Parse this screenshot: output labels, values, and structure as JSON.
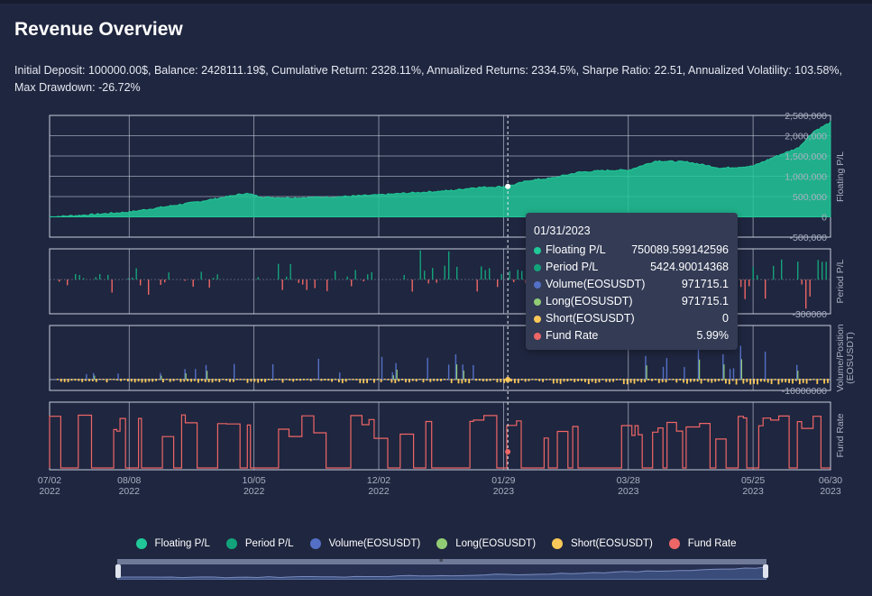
{
  "title": "Revenue Overview",
  "stats": "Initial Deposit: 100000.00$, Balance: 2428111.19$, Cumulative Return: 2328.11%, Annualized Returns: 2334.5%, Sharpe Ratio: 22.51, Annualized Volatility: 103.58%, Max Drawdown: -26.72%",
  "colors": {
    "floating": "#21c898",
    "period": "#13a37b",
    "volume": "#5470c6",
    "long": "#91cc75",
    "short": "#fac858",
    "fund_rate": "#ee6666"
  },
  "tooltip": {
    "date": "01/31/2023",
    "rows": [
      {
        "label": "Floating P/L",
        "value": "750089.599142596",
        "color": "#21c898"
      },
      {
        "label": "Period P/L",
        "value": "5424.90014368",
        "color": "#13a37b"
      },
      {
        "label": "Volume(EOSUSDT)",
        "value": "971715.1",
        "color": "#5470c6"
      },
      {
        "label": "Long(EOSUSDT)",
        "value": "971715.1",
        "color": "#91cc75"
      },
      {
        "label": "Short(EOSUSDT)",
        "value": "0",
        "color": "#fac858"
      },
      {
        "label": "Fund Rate",
        "value": "5.99%",
        "color": "#ee6666"
      }
    ]
  },
  "legend": [
    {
      "label": "Floating P/L",
      "color": "#21c898"
    },
    {
      "label": "Period P/L",
      "color": "#13a37b"
    },
    {
      "label": "Volume(EOSUSDT)",
      "color": "#5470c6"
    },
    {
      "label": "Long(EOSUSDT)",
      "color": "#91cc75"
    },
    {
      "label": "Short(EOSUSDT)",
      "color": "#fac858"
    },
    {
      "label": "Fund Rate",
      "color": "#ee6666"
    }
  ],
  "chart_data": {
    "type": "line",
    "x_ticks": [
      {
        "month": "07/02",
        "year": "2022",
        "date": "2022-07-02"
      },
      {
        "month": "08/08",
        "year": "2022",
        "date": "2022-08-08"
      },
      {
        "month": "10/05",
        "year": "2022",
        "date": "2022-10-05"
      },
      {
        "month": "12/02",
        "year": "2022",
        "date": "2022-12-02"
      },
      {
        "month": "01/29",
        "year": "2023",
        "date": "2023-01-29"
      },
      {
        "month": "03/28",
        "year": "2023",
        "date": "2023-03-28"
      },
      {
        "month": "05/25",
        "year": "2023",
        "date": "2023-05-25"
      },
      {
        "month": "06/30",
        "year": "2023",
        "date": "2023-06-30"
      }
    ],
    "x_range": [
      "2022-07-02",
      "2023-06-30"
    ],
    "crosshair_date": "2023-01-31",
    "panels": [
      {
        "name": "Floating P/L",
        "ylabel": "Floating P/L",
        "ylim": [
          -500000,
          2500000
        ],
        "ticks": [
          "2,500,000",
          "2,000,000",
          "1,500,000",
          "1,000,000",
          "500,000",
          "0",
          "-500,000"
        ],
        "tick_values": [
          2500000,
          2000000,
          1500000,
          1000000,
          500000,
          0,
          -500000
        ],
        "points": [
          [
            "2022-07-02",
            0
          ],
          [
            "2022-07-20",
            50000
          ],
          [
            "2022-08-08",
            120000
          ],
          [
            "2022-08-25",
            250000
          ],
          [
            "2022-09-10",
            380000
          ],
          [
            "2022-09-25",
            520000
          ],
          [
            "2022-10-01",
            580000
          ],
          [
            "2022-10-10",
            480000
          ],
          [
            "2022-10-25",
            470000
          ],
          [
            "2022-11-10",
            490000
          ],
          [
            "2022-12-02",
            540000
          ],
          [
            "2022-12-20",
            600000
          ],
          [
            "2023-01-05",
            650000
          ],
          [
            "2023-01-15",
            720000
          ],
          [
            "2023-01-31",
            750000
          ],
          [
            "2023-02-10",
            900000
          ],
          [
            "2023-02-20",
            950000
          ],
          [
            "2023-03-05",
            1100000
          ],
          [
            "2023-03-20",
            1150000
          ],
          [
            "2023-03-28",
            1150000
          ],
          [
            "2023-04-10",
            1380000
          ],
          [
            "2023-04-25",
            1350000
          ],
          [
            "2023-05-10",
            1200000
          ],
          [
            "2023-05-25",
            1250000
          ],
          [
            "2023-06-05",
            1500000
          ],
          [
            "2023-06-15",
            1700000
          ],
          [
            "2023-06-22",
            2100000
          ],
          [
            "2023-06-30",
            2328111
          ]
        ]
      },
      {
        "name": "Period P/L",
        "ylabel": "Period P/L",
        "ylim": [
          -300000,
          300000
        ],
        "ticks": [
          "-300000"
        ],
        "tick_values": [
          -300000
        ]
      },
      {
        "name": "Volume/Position",
        "ylabel": "Volume/Position (EOSUSDT)",
        "ylim": [
          -10000000,
          50000000
        ],
        "ticks": [
          "-10000000"
        ],
        "tick_values": [
          -10000000
        ]
      },
      {
        "name": "Fund Rate",
        "ylabel": "Fund Rate",
        "ylim": [
          0,
          10
        ]
      }
    ],
    "legend_position": "bottom"
  }
}
